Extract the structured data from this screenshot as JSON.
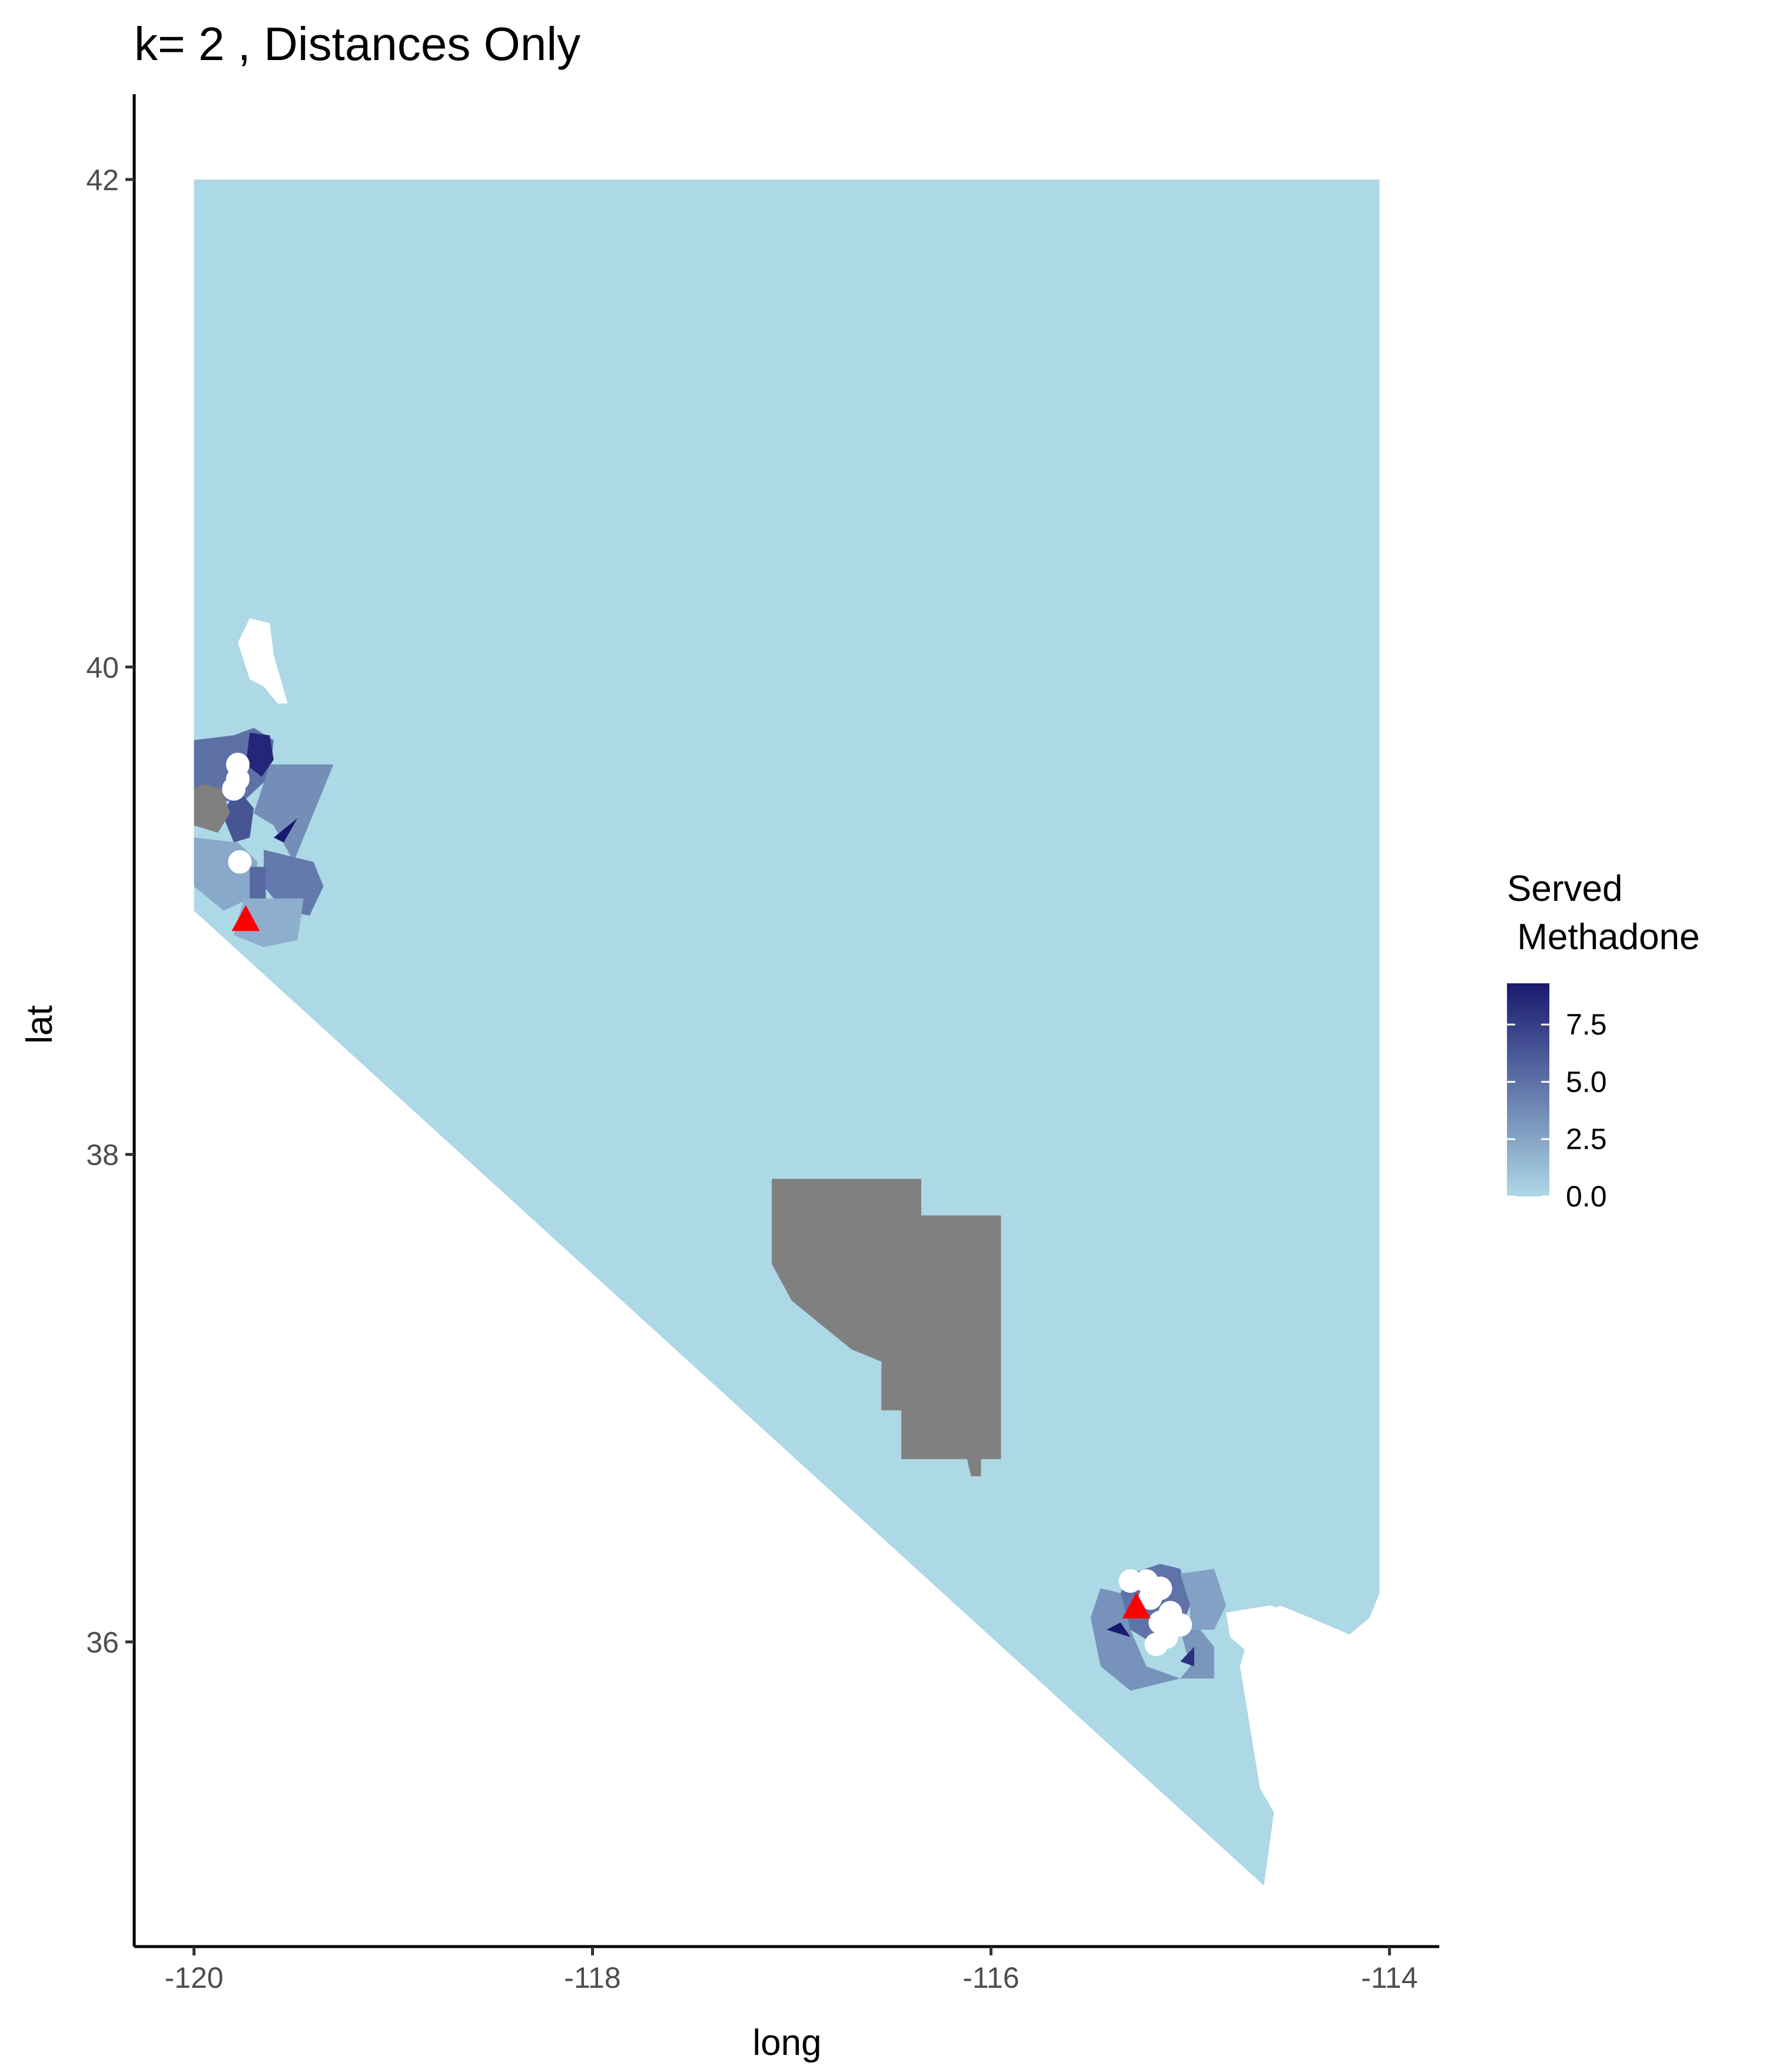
{
  "title": "k= 2 , Distances Only",
  "chart_data": {
    "type": "choropleth-map",
    "title": "k= 2 , Distances Only",
    "xlabel": "long",
    "ylabel": "lat",
    "xlim": [
      -120.3,
      -113.75
    ],
    "ylim": [
      34.75,
      42.35
    ],
    "x_ticks": [
      {
        "value": -120,
        "label": "-120"
      },
      {
        "value": -118,
        "label": "-118"
      },
      {
        "value": -116,
        "label": "-116"
      },
      {
        "value": -114,
        "label": "-114"
      }
    ],
    "y_ticks": [
      {
        "value": 36,
        "label": "36"
      },
      {
        "value": 38,
        "label": "38"
      },
      {
        "value": 40,
        "label": "40"
      },
      {
        "value": 42,
        "label": "42"
      }
    ],
    "grid": false,
    "legend": {
      "title_lines": [
        "Served",
        " Methadone"
      ],
      "placement": "right",
      "min": 0,
      "max": 9.3,
      "low_color": "#add8e6",
      "high_color": "#191970",
      "breaks": [
        {
          "value": 0,
          "label": "0.0"
        },
        {
          "value": 2.5,
          "label": "2.5"
        },
        {
          "value": 5,
          "label": "5.0"
        },
        {
          "value": 7.5,
          "label": "7.5"
        }
      ]
    },
    "colors": {
      "state_fill": "#add8e6",
      "na_fill": "#808080",
      "lake_fill": "#ffffff",
      "cluster_points": "#ffffff",
      "center_markers": "#ff0000"
    },
    "state_outline": [
      [
        -120.0,
        42.0
      ],
      [
        -114.05,
        42.0
      ],
      [
        -114.05,
        36.2
      ],
      [
        -114.1,
        36.1
      ],
      [
        -114.2,
        36.03
      ],
      [
        -114.4,
        36.1
      ],
      [
        -114.55,
        36.15
      ],
      [
        -114.7,
        36.05
      ],
      [
        -114.75,
        35.9
      ],
      [
        -114.7,
        35.65
      ],
      [
        -114.65,
        35.4
      ],
      [
        -114.58,
        35.3
      ],
      [
        -114.63,
        35.0
      ],
      [
        -120.0,
        39.0
      ]
    ],
    "lakes": [
      [
        [
          -119.72,
          39.95
        ],
        [
          -119.78,
          40.1
        ],
        [
          -119.72,
          40.2
        ],
        [
          -119.62,
          40.18
        ],
        [
          -119.6,
          40.05
        ],
        [
          -119.53,
          39.85
        ],
        [
          -119.58,
          39.85
        ],
        [
          -119.65,
          39.92
        ]
      ],
      [
        [
          -114.82,
          36.12
        ],
        [
          -114.6,
          36.15
        ],
        [
          -114.48,
          36.12
        ],
        [
          -114.38,
          36.05
        ],
        [
          -114.25,
          36.0
        ],
        [
          -114.12,
          36.05
        ],
        [
          -114.05,
          36.2
        ],
        [
          -114.05,
          35.95
        ],
        [
          -114.55,
          35.92
        ],
        [
          -114.7,
          35.95
        ],
        [
          -114.8,
          36.02
        ]
      ]
    ],
    "na_regions": [
      [
        [
          -117.1,
          37.9
        ],
        [
          -116.35,
          37.9
        ],
        [
          -116.35,
          37.75
        ],
        [
          -115.95,
          37.75
        ],
        [
          -115.95,
          36.75
        ],
        [
          -116.05,
          36.75
        ],
        [
          -116.05,
          36.68
        ],
        [
          -116.1,
          36.68
        ],
        [
          -116.12,
          36.75
        ],
        [
          -116.45,
          36.75
        ],
        [
          -116.45,
          36.95
        ],
        [
          -116.55,
          36.95
        ],
        [
          -116.55,
          37.15
        ],
        [
          -116.7,
          37.2
        ],
        [
          -116.85,
          37.3
        ],
        [
          -117.0,
          37.4
        ],
        [
          -117.1,
          37.55
        ]
      ],
      [
        [
          -120.0,
          39.35
        ],
        [
          -119.88,
          39.32
        ],
        [
          -119.82,
          39.4
        ],
        [
          -119.86,
          39.5
        ],
        [
          -119.95,
          39.52
        ],
        [
          -120.0,
          39.5
        ]
      ]
    ],
    "tracts": [
      {
        "value": 5.0,
        "ring": [
          [
            -120.0,
            39.7
          ],
          [
            -119.8,
            39.72
          ],
          [
            -119.7,
            39.75
          ],
          [
            -119.6,
            39.7
          ],
          [
            -119.62,
            39.55
          ],
          [
            -119.75,
            39.45
          ],
          [
            -119.9,
            39.45
          ],
          [
            -120.0,
            39.5
          ]
        ]
      },
      {
        "value": 8.6,
        "ring": [
          [
            -119.72,
            39.73
          ],
          [
            -119.62,
            39.72
          ],
          [
            -119.6,
            39.62
          ],
          [
            -119.66,
            39.55
          ],
          [
            -119.74,
            39.6
          ]
        ]
      },
      {
        "value": 3.6,
        "ring": [
          [
            -119.62,
            39.6
          ],
          [
            -119.3,
            39.6
          ],
          [
            -119.5,
            39.2
          ],
          [
            -119.6,
            39.35
          ],
          [
            -119.7,
            39.4
          ]
        ]
      },
      {
        "value": 6.4,
        "ring": [
          [
            -119.78,
            39.5
          ],
          [
            -119.7,
            39.42
          ],
          [
            -119.72,
            39.3
          ],
          [
            -119.8,
            39.28
          ],
          [
            -119.86,
            39.4
          ]
        ]
      },
      {
        "value": 2.3,
        "ring": [
          [
            -120.0,
            39.3
          ],
          [
            -119.78,
            39.28
          ],
          [
            -119.68,
            39.2
          ],
          [
            -119.72,
            39.05
          ],
          [
            -119.85,
            39.0
          ],
          [
            -120.0,
            39.1
          ]
        ]
      },
      {
        "value": 4.6,
        "ring": [
          [
            -119.65,
            39.25
          ],
          [
            -119.4,
            39.2
          ],
          [
            -119.35,
            39.1
          ],
          [
            -119.42,
            38.98
          ],
          [
            -119.55,
            39.0
          ],
          [
            -119.65,
            39.1
          ]
        ]
      },
      {
        "value": 2.0,
        "ring": [
          [
            -119.75,
            39.05
          ],
          [
            -119.45,
            39.05
          ],
          [
            -119.48,
            38.88
          ],
          [
            -119.65,
            38.85
          ],
          [
            -119.8,
            38.9
          ]
        ]
      },
      {
        "value": 9.3,
        "ring": [
          [
            -119.6,
            39.3
          ],
          [
            -119.48,
            39.38
          ],
          [
            -119.55,
            39.28
          ]
        ]
      },
      {
        "value": 5.4,
        "ring": [
          [
            -119.72,
            39.18
          ],
          [
            -119.64,
            39.18
          ],
          [
            -119.64,
            39.05
          ],
          [
            -119.72,
            39.05
          ]
        ]
      },
      {
        "value": 4.9,
        "ring": [
          [
            -115.3,
            36.28
          ],
          [
            -115.15,
            36.32
          ],
          [
            -115.05,
            36.3
          ],
          [
            -115.0,
            36.15
          ],
          [
            -115.05,
            36.05
          ],
          [
            -115.2,
            36.0
          ],
          [
            -115.3,
            36.05
          ],
          [
            -115.35,
            36.2
          ]
        ]
      },
      {
        "value": 3.4,
        "ring": [
          [
            -115.35,
            36.2
          ],
          [
            -115.3,
            36.05
          ],
          [
            -115.22,
            35.9
          ],
          [
            -115.05,
            35.85
          ],
          [
            -115.3,
            35.8
          ],
          [
            -115.45,
            35.9
          ],
          [
            -115.5,
            36.1
          ],
          [
            -115.45,
            36.22
          ]
        ]
      },
      {
        "value": 3.2,
        "ring": [
          [
            -115.05,
            36.05
          ],
          [
            -115.0,
            35.9
          ],
          [
            -115.05,
            35.85
          ],
          [
            -114.88,
            35.85
          ],
          [
            -114.88,
            35.98
          ],
          [
            -114.95,
            36.05
          ]
        ]
      },
      {
        "value": 2.7,
        "ring": [
          [
            -115.05,
            36.28
          ],
          [
            -114.88,
            36.3
          ],
          [
            -114.82,
            36.15
          ],
          [
            -114.88,
            36.05
          ],
          [
            -115.0,
            36.05
          ],
          [
            -115.0,
            36.15
          ]
        ]
      },
      {
        "value": 9.3,
        "ring": [
          [
            -115.35,
            36.08
          ],
          [
            -115.3,
            36.02
          ],
          [
            -115.42,
            36.05
          ]
        ]
      },
      {
        "value": 8.2,
        "ring": [
          [
            -115.05,
            35.92
          ],
          [
            -114.98,
            35.9
          ],
          [
            -114.98,
            35.98
          ]
        ]
      }
    ],
    "cluster_points": [
      [
        -119.78,
        39.6
      ],
      [
        -119.78,
        39.54
      ],
      [
        -119.8,
        39.5
      ],
      [
        -119.77,
        39.2
      ],
      [
        -115.3,
        36.25
      ],
      [
        -115.22,
        36.25
      ],
      [
        -115.15,
        36.22
      ],
      [
        -115.2,
        36.18
      ],
      [
        -115.1,
        36.12
      ],
      [
        -115.15,
        36.08
      ],
      [
        -115.05,
        36.07
      ],
      [
        -115.12,
        36.02
      ],
      [
        -115.17,
        35.99
      ]
    ],
    "center_markers": [
      [
        -119.74,
        38.96
      ],
      [
        -115.27,
        36.14
      ]
    ]
  }
}
